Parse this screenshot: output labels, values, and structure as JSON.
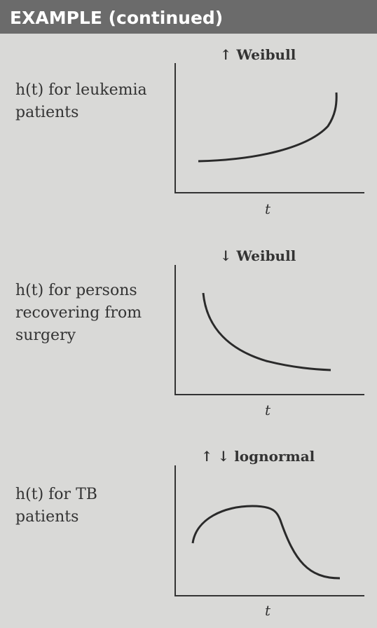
{
  "header": {
    "title": "EXAMPLE (continued)"
  },
  "panels": [
    {
      "label_lines": [
        "h(t) for leukemia",
        "patients"
      ],
      "title": "↑ Weibull",
      "x_label": "t"
    },
    {
      "label_lines": [
        "h(t) for persons",
        "recovering from",
        "surgery"
      ],
      "title": "↓ Weibull",
      "x_label": "t"
    },
    {
      "label_lines": [
        "h(t) for TB",
        "patients"
      ],
      "title": "↑ ↓ lognormal",
      "x_label": "t"
    }
  ]
}
